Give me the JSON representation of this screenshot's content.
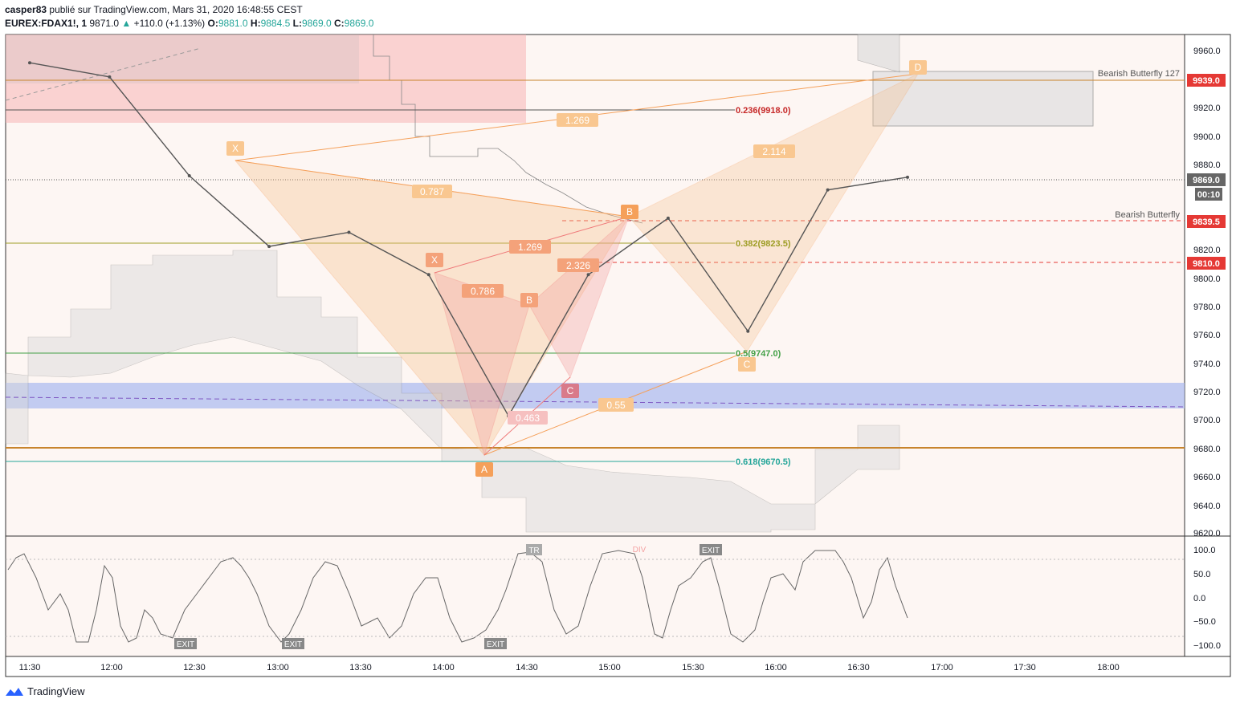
{
  "header": {
    "author": "casper83",
    "published": "publié sur TradingView.com, Mars 31, 2020 16:48:55 CEST",
    "symbol": "EUREX:FDAX1!, 1",
    "last": "9871.0",
    "change": "+110.0 (+1.13%)",
    "o_label": "O:",
    "o": "9881.0",
    "h_label": "H:",
    "h": "9884.5",
    "l_label": "L:",
    "l": "9869.0",
    "c_label": "C:",
    "c": "9869.0"
  },
  "price_axis": {
    "ticks": [
      "9960.0",
      "9920.0",
      "9900.0",
      "9880.0",
      "9820.0",
      "9800.0",
      "9780.0",
      "9760.0",
      "9740.0",
      "9720.0",
      "9700.0",
      "9680.0",
      "9660.0",
      "9640.0",
      "9620.0"
    ],
    "tags": [
      {
        "label": "9939.0",
        "color": "#e53935"
      },
      {
        "label": "9869.0",
        "color": "#555555"
      },
      {
        "label": "00:10",
        "color": "#555555"
      },
      {
        "label": "9839.5",
        "color": "#e53935"
      },
      {
        "label": "9810.0",
        "color": "#e53935"
      }
    ]
  },
  "osc_axis": {
    "ticks": [
      "100.0",
      "50.0",
      "0.0",
      "−50.0",
      "−100.0"
    ]
  },
  "time_axis": {
    "ticks": [
      "11:30",
      "12:00",
      "12:30",
      "13:00",
      "13:30",
      "14:00",
      "14:30",
      "15:00",
      "15:30",
      "16:00",
      "16:30",
      "17:00",
      "17:30",
      "18:00"
    ]
  },
  "pattern_labels": {
    "bearish_butterfly_127": "Bearish Butterfly 127",
    "bearish_butterfly": "Bearish Butterfly"
  },
  "fib_levels": [
    {
      "label": "0.236(9918.0)",
      "color": "#c62828"
    },
    {
      "label": "0.382(9823.5)",
      "color": "#9e9d24"
    },
    {
      "label": "0.5(9747.0)",
      "color": "#43a047"
    },
    {
      "label": "0.618(9670.5)",
      "color": "#26a69a"
    }
  ],
  "ratios": [
    "1.269",
    "0.787",
    "1.269",
    "0.786",
    "2.326",
    "2.114",
    "0.463",
    "0.55"
  ],
  "points": [
    "X",
    "A",
    "B",
    "C",
    "D",
    "X",
    "B",
    "C",
    "A"
  ],
  "osc_markers": [
    "EXIT",
    "EXIT",
    "EXIT",
    "EXIT",
    "TR",
    "DIV"
  ],
  "footer": {
    "brand": "TradingView"
  },
  "chart_data": {
    "type": "line",
    "title": "EUREX:FDAX1!, 1",
    "x": [
      "11:30",
      "12:00",
      "12:30",
      "13:00",
      "13:30",
      "14:00",
      "14:30",
      "15:00",
      "15:30",
      "16:00",
      "16:30",
      "16:48"
    ],
    "series": [
      {
        "values": [
          9950,
          9940,
          9870,
          9820,
          9830,
          9800,
          9700,
          9800,
          9840,
          9760,
          9860,
          9869
        ]
      }
    ],
    "ylim": [
      9615,
      9970
    ]
  }
}
